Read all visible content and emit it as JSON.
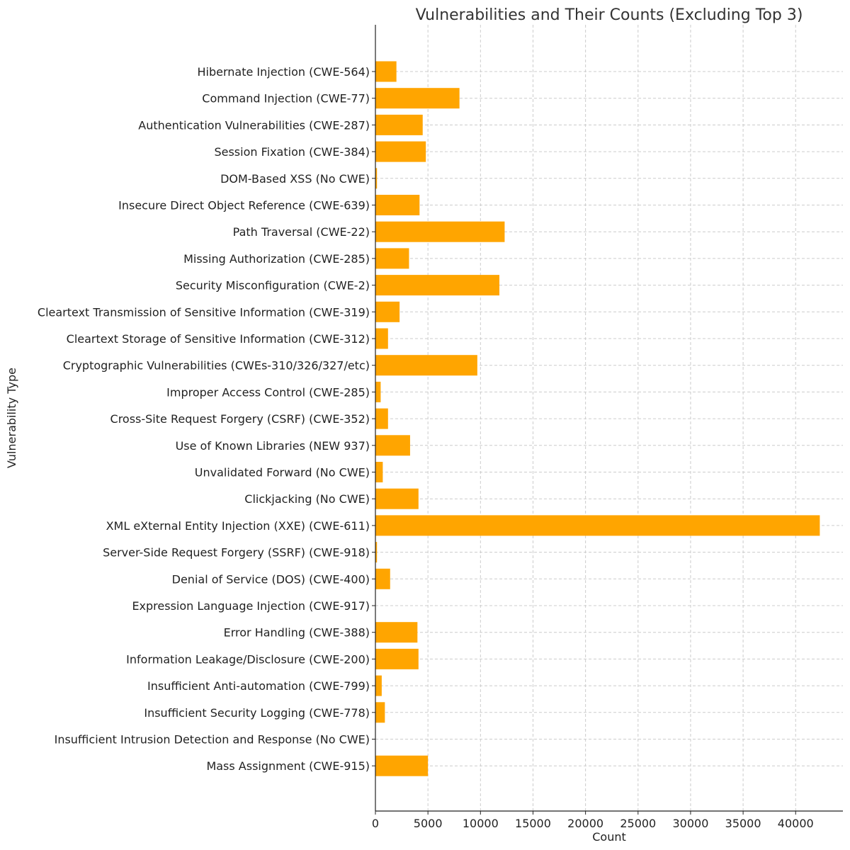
{
  "chart_data": {
    "type": "bar",
    "orientation": "horizontal",
    "title": "Vulnerabilities and Their Counts (Excluding Top 3)",
    "xlabel": "Count",
    "ylabel": "Vulnerability Type",
    "xlim": [
      0,
      44500
    ],
    "xticks": [
      0,
      5000,
      10000,
      15000,
      20000,
      25000,
      30000,
      35000,
      40000
    ],
    "grid": true,
    "bar_color": "#FFA500",
    "categories": [
      "Hibernate Injection (CWE-564)",
      "Command Injection (CWE-77)",
      "Authentication Vulnerabilities (CWE-287)",
      "Session Fixation (CWE-384)",
      "DOM-Based XSS (No CWE)",
      "Insecure Direct Object Reference (CWE-639)",
      "Path Traversal (CWE-22)",
      "Missing Authorization (CWE-285)",
      "Security Misconfiguration (CWE-2)",
      "Cleartext Transmission of Sensitive Information (CWE-319)",
      "Cleartext Storage of Sensitive Information (CWE-312)",
      "Cryptographic Vulnerabilities (CWEs-310/326/327/etc)",
      "Improper Access Control (CWE-285)",
      "Cross-Site Request Forgery (CSRF) (CWE-352)",
      "Use of Known Libraries (NEW 937)",
      "Unvalidated Forward (No CWE)",
      "Clickjacking (No CWE)",
      "XML eXternal Entity Injection (XXE) (CWE-611)",
      "Server-Side Request Forgery (SSRF) (CWE-918)",
      "Denial of Service (DOS) (CWE-400)",
      "Expression Language Injection (CWE-917)",
      "Error Handling (CWE-388)",
      "Information Leakage/Disclosure (CWE-200)",
      "Insufficient Anti-automation (CWE-799)",
      "Insufficient Security Logging (CWE-778)",
      "Insufficient Intrusion Detection and Response (No CWE)",
      "Mass Assignment (CWE-915)"
    ],
    "values": [
      2000,
      8000,
      4500,
      4800,
      150,
      4200,
      12300,
      3200,
      11800,
      2300,
      1200,
      9700,
      500,
      1200,
      3300,
      700,
      4100,
      42300,
      150,
      1400,
      0,
      4000,
      4100,
      600,
      900,
      0,
      5000
    ]
  }
}
